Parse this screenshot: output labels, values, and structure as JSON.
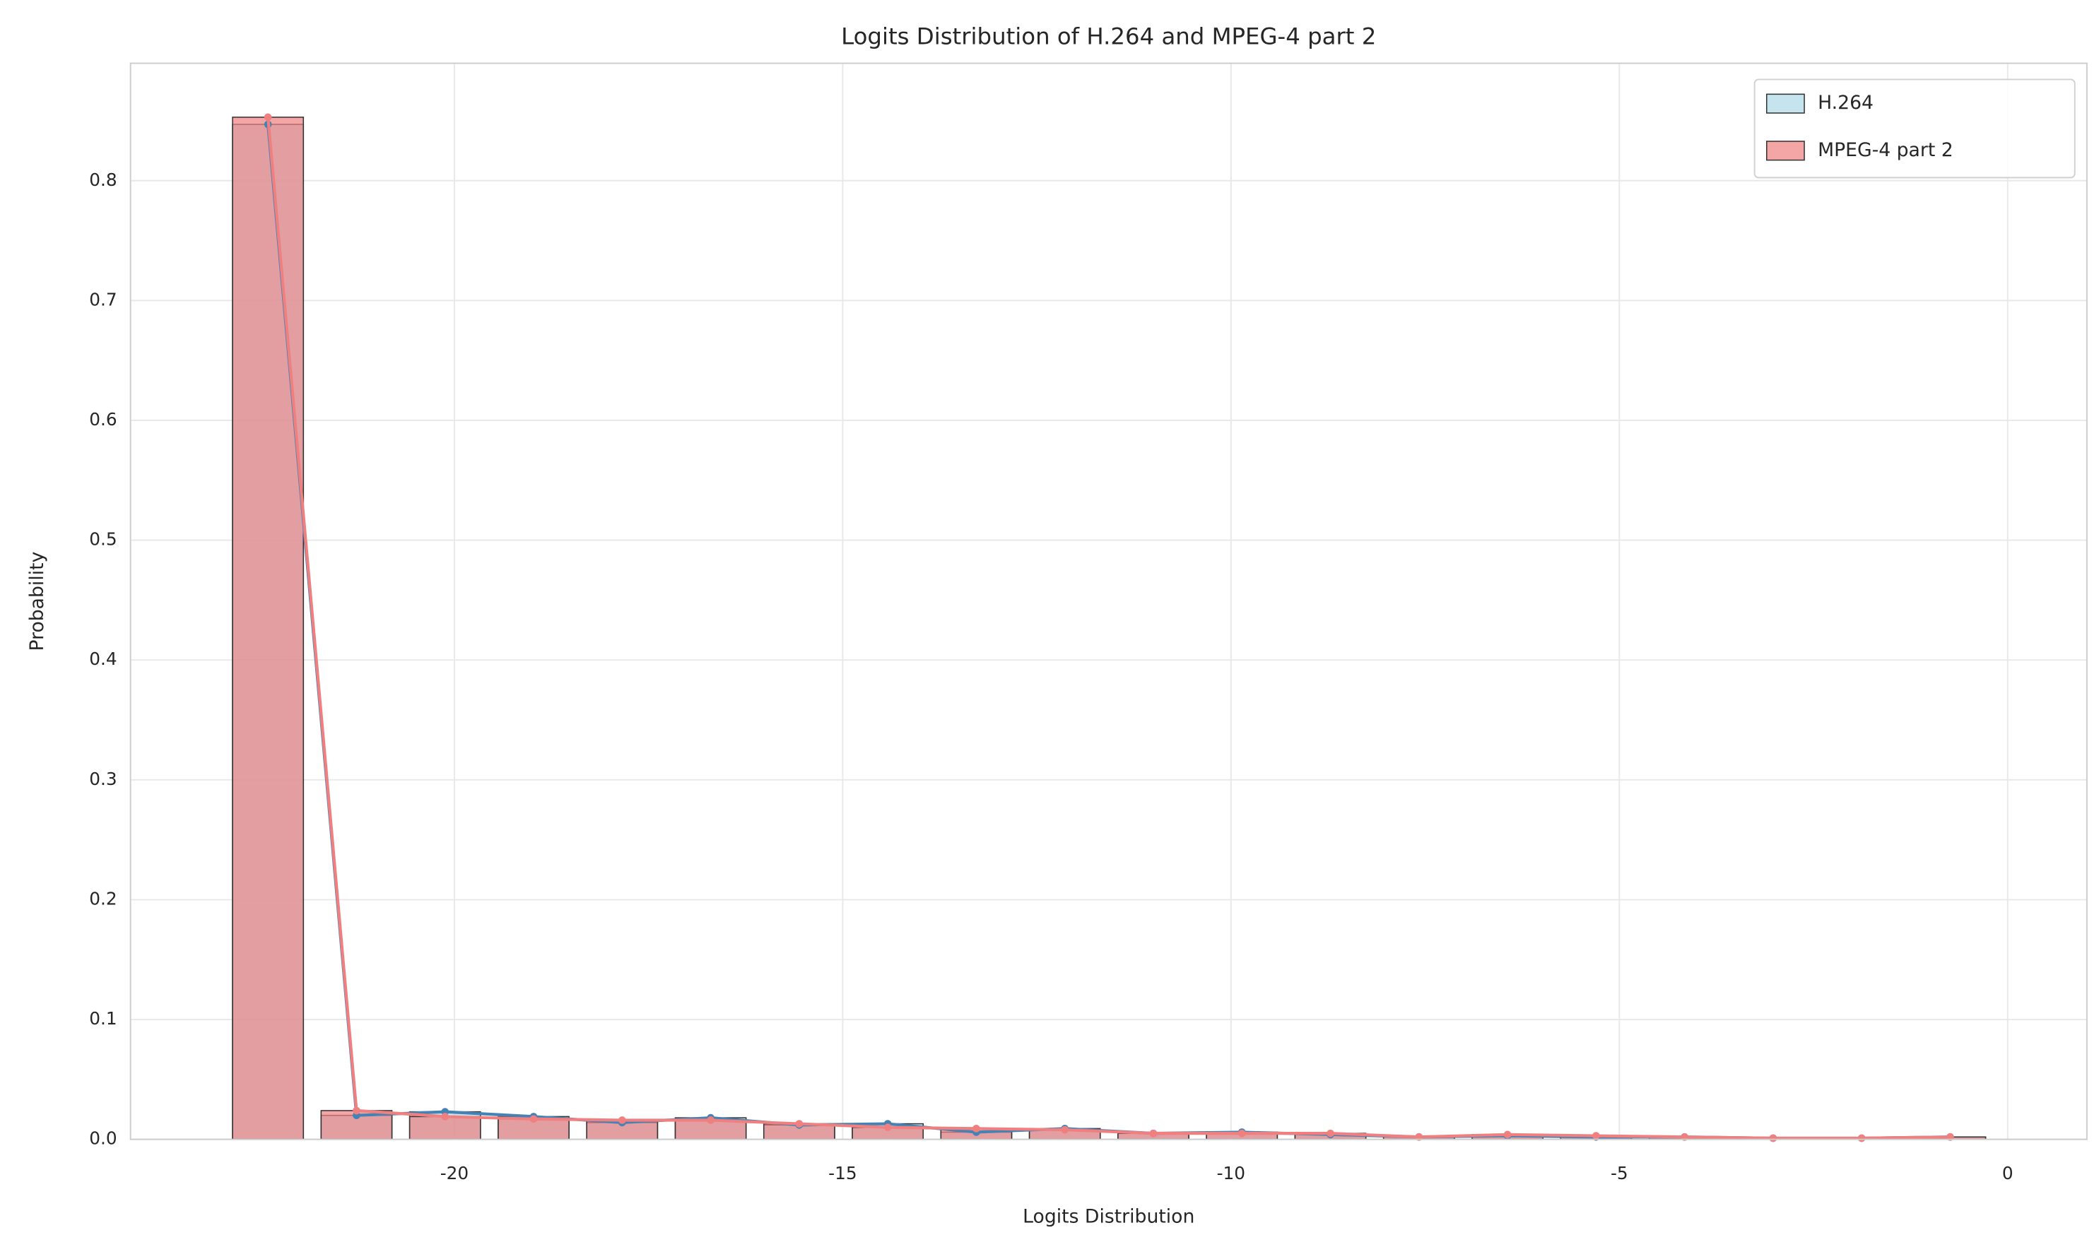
{
  "chart_data": {
    "type": "histogram",
    "title": "Logits Distribution of H.264 and MPEG-4 part 2",
    "xlabel": "Logits Distribution",
    "ylabel": "Probability",
    "bins": [
      -22.97,
      -21.83,
      -20.69,
      -19.55,
      -18.41,
      -17.27,
      -16.13,
      -14.99,
      -13.85,
      -12.71,
      -11.57,
      -10.43,
      -9.29,
      -8.15,
      -7.01,
      -5.87,
      -4.73,
      -3.59,
      -2.45,
      -1.31,
      -0.17
    ],
    "series": [
      {
        "name": "H.264",
        "color": "#add8e6",
        "line_color": "#4682b4",
        "values": [
          0.847,
          0.02,
          0.023,
          0.019,
          0.014,
          0.018,
          0.012,
          0.013,
          0.006,
          0.009,
          0.005,
          0.006,
          0.004,
          0.002,
          0.003,
          0.002,
          0.002,
          0.001,
          0.001,
          0.002
        ]
      },
      {
        "name": "MPEG-4 part 2",
        "color": "#f08080",
        "line_color": "#f08080",
        "values": [
          0.853,
          0.024,
          0.019,
          0.017,
          0.016,
          0.016,
          0.013,
          0.01,
          0.009,
          0.008,
          0.005,
          0.005,
          0.005,
          0.002,
          0.004,
          0.003,
          0.002,
          0.001,
          0.001,
          0.002
        ]
      }
    ],
    "xlim": [
      -24.17,
      1.02
    ],
    "xticks": [
      -20,
      -15,
      -10,
      -5,
      0
    ],
    "ylim": [
      0,
      0.898
    ],
    "yticks": [
      {
        "value": 0,
        "label": "0.0"
      },
      0.1,
      0.2,
      0.3,
      0.4,
      0.5,
      0.6,
      0.7,
      0.8
    ],
    "grid": true,
    "legend": "upper right"
  }
}
